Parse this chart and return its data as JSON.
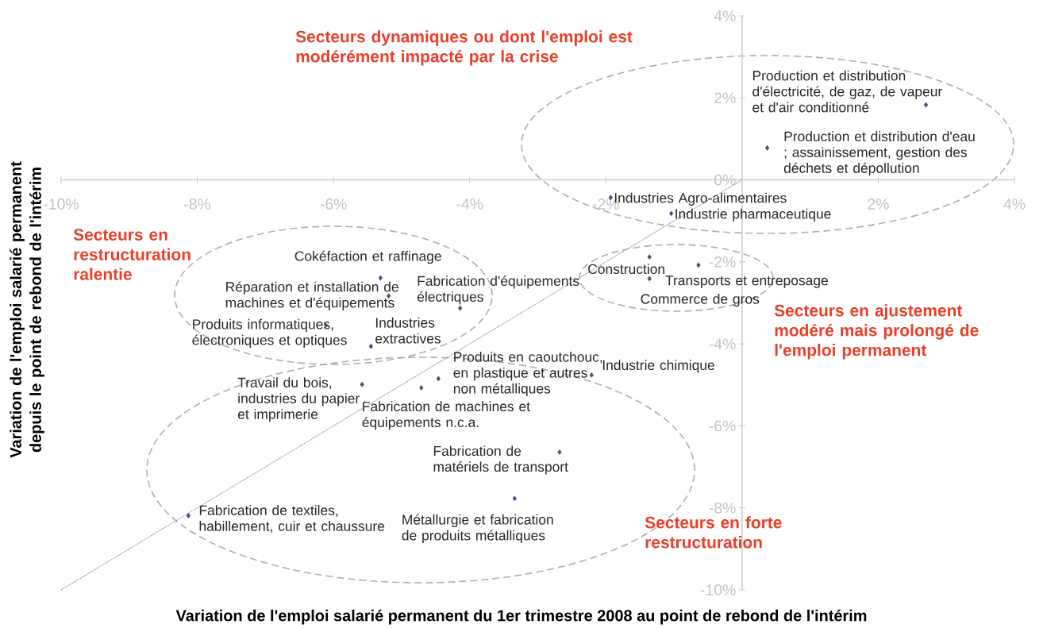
{
  "chart_data": {
    "type": "scatter",
    "xlabel": "Variation de l'emploi salarié permanent du 1er trimestre 2008 au point de rebond de l'intérim",
    "ylabel": "Variation de l'emploi salarié permanent depuis le point de rebond de l'intérim",
    "xlim": [
      -10,
      4
    ],
    "ylim": [
      -10,
      4
    ],
    "marker": "diamond",
    "xticks": [
      {
        "value": -10,
        "label": "-10%"
      },
      {
        "value": -8,
        "label": "-8%"
      },
      {
        "value": -6,
        "label": "-6%"
      },
      {
        "value": -4,
        "label": "-4%"
      },
      {
        "value": -2,
        "label": "-2%"
      },
      {
        "value": 2,
        "label": "2%"
      },
      {
        "value": 4,
        "label": "4%"
      }
    ],
    "yticks": [
      {
        "value": -10,
        "label": "-10%"
      },
      {
        "value": -8,
        "label": "-8%"
      },
      {
        "value": -6,
        "label": "-6%"
      },
      {
        "value": -4,
        "label": "-4%"
      },
      {
        "value": -2,
        "label": "-2%"
      },
      {
        "value": 0,
        "label": "0%"
      },
      {
        "value": 2,
        "label": "2%"
      },
      {
        "value": 4,
        "label": "4%"
      }
    ],
    "series": [
      {
        "type": "scatter",
        "color": "#4b4b7c",
        "x": [
          2.7,
          0.37,
          -1.93,
          -1.04,
          -1.36,
          -0.64,
          -1.36,
          -5.31,
          -5.19,
          -4.14,
          -6.11,
          -5.45,
          -4.46,
          -4.71,
          -5.58,
          -2.21,
          -2.68,
          -3.34,
          -8.13
        ],
        "values": [
          1.83,
          0.78,
          -0.43,
          -0.82,
          -1.88,
          -2.08,
          -2.41,
          -2.39,
          -2.83,
          -3.13,
          -3.55,
          -4.06,
          -4.85,
          -5.07,
          -4.99,
          -4.76,
          -6.64,
          -7.77,
          -8.19
        ]
      },
      {
        "type": "line",
        "color": "#6a6ab8",
        "line_style": "dotted",
        "marker": "none",
        "x": [
          -10,
          0
        ],
        "values": [
          -10,
          0
        ]
      }
    ],
    "annotations": [
      "Secteurs dynamiques ou dont l'emploi est modérément impacté par la crise",
      "Secteurs en restructuration ralentie",
      "Secteurs en ajustement modéré mais prolongé de l'emploi permanent",
      "Secteurs en forte restructuration",
      {
        "text": "Production et distribution d'électricité, de gaz, de vapeur et d'air conditionné",
        "x": 2.7,
        "y": 1.83
      },
      {
        "text": "Production et distribution d'eau ; assainissement, gestion des déchets et dépollution",
        "x": 0.37,
        "y": 0.78
      },
      {
        "text": "Industries Agro-alimentaires",
        "x": -1.93,
        "y": -0.43
      },
      {
        "text": "Industrie pharmaceutique",
        "x": -1.04,
        "y": -0.82
      },
      {
        "text": "Construction",
        "x": -1.36,
        "y": -1.88
      },
      {
        "text": "Transports et entreposage",
        "x": -0.64,
        "y": -2.08
      },
      {
        "text": "Commerce de gros",
        "x": -1.36,
        "y": -2.41
      },
      {
        "text": "Cokéfaction et raffinage",
        "x": -5.31,
        "y": -2.39
      },
      {
        "text": "Réparation et installation de machines et d'équipements",
        "x": -5.19,
        "y": -2.83
      },
      {
        "text": "Fabrication d'équipements électriques",
        "x": -4.14,
        "y": -3.13
      },
      {
        "text": "Produits informatiques, électroniques et optiques",
        "x": -6.11,
        "y": -3.55
      },
      {
        "text": "Industries extractives",
        "x": -5.45,
        "y": -4.06
      },
      {
        "text": "Produits en caoutchouc, en plastique et autres non métalliques",
        "x": -4.46,
        "y": -4.85
      },
      {
        "text": "Fabrication de machines et équipements n.c.a.",
        "x": -4.71,
        "y": -5.07
      },
      {
        "text": "Travail du bois, industries du papier et imprimerie",
        "x": -5.58,
        "y": -4.99
      },
      {
        "text": "Industrie chimique",
        "x": -2.21,
        "y": -4.76
      },
      {
        "text": "Fabrication de matériels de transport",
        "x": -2.68,
        "y": -6.64
      },
      {
        "text": "Métallurgie et fabrication de produits métalliques",
        "x": -3.34,
        "y": -7.77
      },
      {
        "text": "Fabrication de textiles, habillement, cuir et chaussure",
        "x": -8.13,
        "y": -8.19
      }
    ]
  }
}
